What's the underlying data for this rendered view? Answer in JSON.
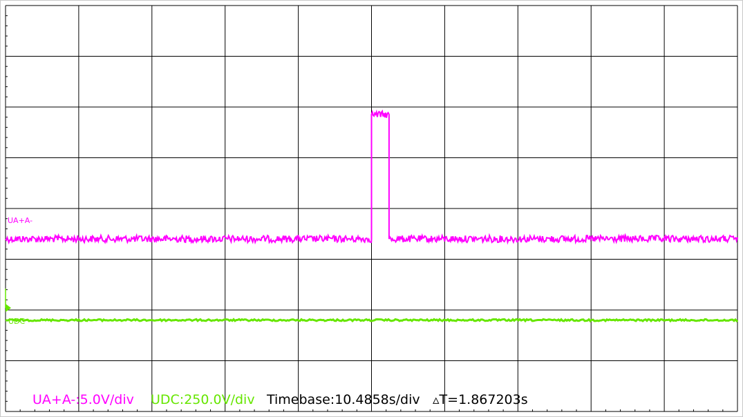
{
  "chart_data": {
    "type": "line",
    "title": "",
    "xlabel": "",
    "ylabel": "",
    "grid": true,
    "divisions": {
      "x": 10,
      "y": 8
    },
    "series": [
      {
        "name": "UA+A-",
        "color": "#ff00ff",
        "units": "div",
        "x": [
          0,
          5.0,
          5.0,
          5.24,
          5.24,
          10
        ],
        "y": [
          -0.6,
          -0.6,
          1.85,
          1.85,
          -0.6,
          -0.6
        ]
      },
      {
        "name": "UDC",
        "color": "#66e600",
        "units": "div",
        "x": [
          0,
          10
        ],
        "y": [
          -2.2,
          -2.2
        ]
      }
    ]
  },
  "labels": {
    "ua_trace": "UA+A-",
    "udc_trace": "UDC"
  },
  "status": {
    "ua_scale": "UA+A-:5.0V/div",
    "udc_scale": "UDC:250.0V/div",
    "timebase": "Timebase:10.4858s/div",
    "delta_t": "▵T=1.867203s"
  },
  "colors": {
    "ua": "#ff00ff",
    "udc": "#66e600",
    "grid": "#000000",
    "background": "#ffffff",
    "text": "#000000"
  }
}
